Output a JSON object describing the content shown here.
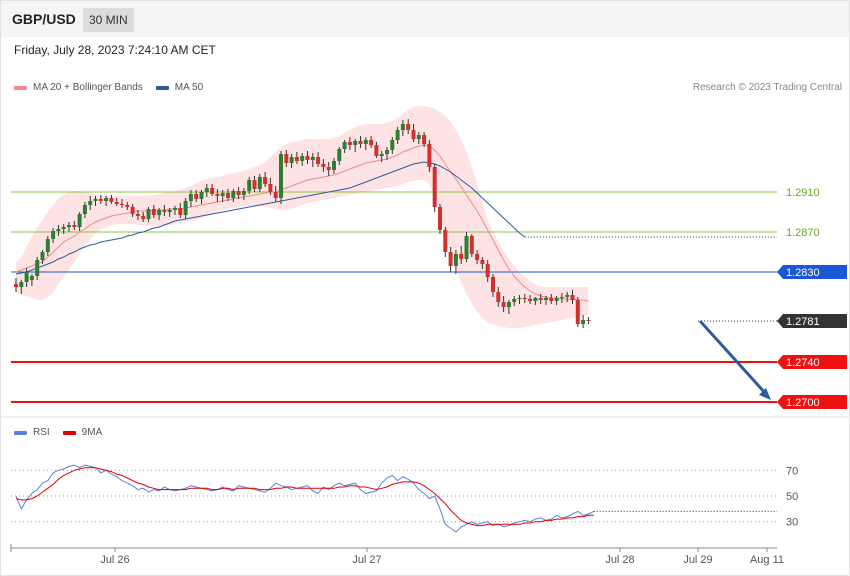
{
  "header": {
    "symbol": "GBP/USD",
    "timeframe": "30 MIN",
    "datetime": "Friday, July 28, 2023 7:24:10 AM CET"
  },
  "legend": {
    "ma20_label": "MA 20 + Bollinger Bands",
    "ma20_color": "#f08a8a",
    "ma50_label": "MA 50",
    "ma50_color": "#2e5c9a",
    "rsi_label": "RSI",
    "rsi_color": "#5b7fdc",
    "ma9_label": "9MA",
    "ma9_color": "#e00000"
  },
  "credit": "Research © 2023 Trading Central",
  "chart_data": {
    "type": "candlestick",
    "y_range": [
      1.2685,
      1.3005
    ],
    "x_labels": [
      "Jul 26",
      "Jul 27",
      "Jul 28",
      "Jul 29",
      "Aug 11"
    ],
    "levels": [
      {
        "value": 1.291,
        "label": "1.2910",
        "kind": "resistance",
        "color": "#8cc641"
      },
      {
        "value": 1.287,
        "label": "1.2870",
        "kind": "resistance",
        "color": "#8cc641"
      },
      {
        "value": 1.283,
        "label": "1.2830",
        "kind": "pivot",
        "color": "#1a56d6"
      },
      {
        "value": 1.2781,
        "label": "1.2781",
        "kind": "last",
        "color": "#333333"
      },
      {
        "value": 1.274,
        "label": "1.2740",
        "kind": "support",
        "color": "#ee1111"
      },
      {
        "value": 1.27,
        "label": "1.2700",
        "kind": "support",
        "color": "#ee1111"
      }
    ],
    "forecast_arrow": {
      "from": 1.2781,
      "to": 1.2702
    },
    "candles_ohlc": [
      [
        1.2818,
        1.2824,
        1.281,
        1.2815
      ],
      [
        1.2815,
        1.2822,
        1.2808,
        1.282
      ],
      [
        1.282,
        1.2834,
        1.2815,
        1.283
      ],
      [
        1.2822,
        1.2828,
        1.2816,
        1.2826
      ],
      [
        1.2826,
        1.2845,
        1.2822,
        1.2842
      ],
      [
        1.2842,
        1.2852,
        1.2838,
        1.285
      ],
      [
        1.285,
        1.2866,
        1.2846,
        1.2863
      ],
      [
        1.2863,
        1.2874,
        1.2859,
        1.2871
      ],
      [
        1.2871,
        1.2877,
        1.2866,
        1.2873
      ],
      [
        1.2873,
        1.2878,
        1.2868,
        1.2875
      ],
      [
        1.2875,
        1.288,
        1.287,
        1.2877
      ],
      [
        1.2877,
        1.2881,
        1.2872,
        1.2875
      ],
      [
        1.2875,
        1.289,
        1.2871,
        1.2888
      ],
      [
        1.2888,
        1.29,
        1.2884,
        1.2897
      ],
      [
        1.2897,
        1.2906,
        1.2892,
        1.2901
      ],
      [
        1.2901,
        1.2906,
        1.2896,
        1.2903
      ],
      [
        1.2903,
        1.2907,
        1.2898,
        1.2901
      ],
      [
        1.2901,
        1.2906,
        1.2896,
        1.2904
      ],
      [
        1.2904,
        1.2907,
        1.2898,
        1.29
      ],
      [
        1.29,
        1.2904,
        1.2896,
        1.2898
      ],
      [
        1.2898,
        1.2903,
        1.2894,
        1.2897
      ],
      [
        1.2897,
        1.29,
        1.2892,
        1.2895
      ],
      [
        1.2895,
        1.2898,
        1.2885,
        1.2888
      ],
      [
        1.2888,
        1.2892,
        1.2882,
        1.2886
      ],
      [
        1.2886,
        1.289,
        1.288,
        1.2883
      ],
      [
        1.2883,
        1.2895,
        1.288,
        1.2893
      ],
      [
        1.2893,
        1.2897,
        1.2884,
        1.2887
      ],
      [
        1.2887,
        1.2894,
        1.2882,
        1.2892
      ],
      [
        1.2892,
        1.2897,
        1.2886,
        1.289
      ],
      [
        1.289,
        1.2894,
        1.2885,
        1.2892
      ],
      [
        1.2892,
        1.2896,
        1.2887,
        1.2894
      ],
      [
        1.2894,
        1.2899,
        1.2884,
        1.2887
      ],
      [
        1.2887,
        1.2904,
        1.2883,
        1.2901
      ],
      [
        1.2901,
        1.2912,
        1.2895,
        1.2908
      ],
      [
        1.2908,
        1.2912,
        1.29,
        1.2903
      ],
      [
        1.2903,
        1.2912,
        1.2898,
        1.291
      ],
      [
        1.291,
        1.2918,
        1.2905,
        1.2914
      ],
      [
        1.2914,
        1.2918,
        1.2906,
        1.2908
      ],
      [
        1.2908,
        1.2913,
        1.29,
        1.2906
      ],
      [
        1.2906,
        1.2912,
        1.29,
        1.2909
      ],
      [
        1.2909,
        1.2913,
        1.2901,
        1.2904
      ],
      [
        1.2904,
        1.2913,
        1.29,
        1.2911
      ],
      [
        1.2911,
        1.2915,
        1.2903,
        1.2907
      ],
      [
        1.2907,
        1.2914,
        1.2902,
        1.2911
      ],
      [
        1.2911,
        1.2925,
        1.2908,
        1.2922
      ],
      [
        1.2922,
        1.2926,
        1.291,
        1.2913
      ],
      [
        1.2913,
        1.2928,
        1.291,
        1.2925
      ],
      [
        1.2925,
        1.293,
        1.2915,
        1.2918
      ],
      [
        1.2918,
        1.2924,
        1.2907,
        1.291
      ],
      [
        1.291,
        1.2916,
        1.29,
        1.2904
      ],
      [
        1.2904,
        1.2951,
        1.2898,
        1.2948
      ],
      [
        1.2948,
        1.2952,
        1.2935,
        1.2939
      ],
      [
        1.2939,
        1.2948,
        1.2934,
        1.2945
      ],
      [
        1.2945,
        1.295,
        1.2938,
        1.2941
      ],
      [
        1.2941,
        1.2949,
        1.2936,
        1.2946
      ],
      [
        1.2946,
        1.2951,
        1.2938,
        1.2942
      ],
      [
        1.2942,
        1.2949,
        1.2935,
        1.2945
      ],
      [
        1.2945,
        1.295,
        1.2935,
        1.2938
      ],
      [
        1.2938,
        1.2943,
        1.293,
        1.2935
      ],
      [
        1.2935,
        1.294,
        1.2926,
        1.2932
      ],
      [
        1.2932,
        1.2944,
        1.2928,
        1.2941
      ],
      [
        1.2941,
        1.2955,
        1.2937,
        1.2953
      ],
      [
        1.2953,
        1.2962,
        1.2949,
        1.296
      ],
      [
        1.296,
        1.2965,
        1.2952,
        1.2957
      ],
      [
        1.2957,
        1.2963,
        1.295,
        1.2961
      ],
      [
        1.2961,
        1.2966,
        1.2954,
        1.2958
      ],
      [
        1.2958,
        1.2965,
        1.2952,
        1.2962
      ],
      [
        1.2962,
        1.2966,
        1.2954,
        1.2957
      ],
      [
        1.2957,
        1.296,
        1.2944,
        1.2946
      ],
      [
        1.2946,
        1.2951,
        1.294,
        1.2948
      ],
      [
        1.2948,
        1.2955,
        1.2942,
        1.2952
      ],
      [
        1.2952,
        1.2965,
        1.2948,
        1.2962
      ],
      [
        1.2962,
        1.2975,
        1.2958,
        1.2972
      ],
      [
        1.2972,
        1.2982,
        1.2966,
        1.2978
      ],
      [
        1.2978,
        1.2983,
        1.2968,
        1.2972
      ],
      [
        1.2972,
        1.2978,
        1.296,
        1.2963
      ],
      [
        1.2963,
        1.297,
        1.2958,
        1.2967
      ],
      [
        1.2967,
        1.297,
        1.2955,
        1.2958
      ],
      [
        1.2958,
        1.2962,
        1.293,
        1.2935
      ],
      [
        1.2935,
        1.2938,
        1.289,
        1.2895
      ],
      [
        1.2895,
        1.2898,
        1.2868,
        1.2872
      ],
      [
        1.2872,
        1.2875,
        1.2845,
        1.285
      ],
      [
        1.285,
        1.2855,
        1.283,
        1.2836
      ],
      [
        1.2836,
        1.2852,
        1.2828,
        1.2848
      ],
      [
        1.2848,
        1.2856,
        1.2838,
        1.2843
      ],
      [
        1.2843,
        1.287,
        1.284,
        1.2866
      ],
      [
        1.2866,
        1.2868,
        1.2845,
        1.2848
      ],
      [
        1.2848,
        1.2852,
        1.2838,
        1.2842
      ],
      [
        1.2842,
        1.2845,
        1.2833,
        1.2838
      ],
      [
        1.2838,
        1.2842,
        1.282,
        1.2825
      ],
      [
        1.2825,
        1.2828,
        1.2805,
        1.281
      ],
      [
        1.281,
        1.2815,
        1.2795,
        1.28
      ],
      [
        1.28,
        1.2806,
        1.279,
        1.2795
      ],
      [
        1.2795,
        1.2802,
        1.2788,
        1.28
      ],
      [
        1.28,
        1.2806,
        1.2796,
        1.2803
      ],
      [
        1.2803,
        1.2807,
        1.2798,
        1.2804
      ],
      [
        1.2804,
        1.2808,
        1.2799,
        1.2803
      ],
      [
        1.2803,
        1.2807,
        1.2798,
        1.2801
      ],
      [
        1.2801,
        1.2805,
        1.2797,
        1.2804
      ],
      [
        1.2804,
        1.2808,
        1.2798,
        1.2802
      ],
      [
        1.2802,
        1.2806,
        1.2797,
        1.2804
      ],
      [
        1.2804,
        1.2808,
        1.2798,
        1.2801
      ],
      [
        1.2801,
        1.2806,
        1.2797,
        1.2804
      ],
      [
        1.2804,
        1.2809,
        1.2799,
        1.2805
      ],
      [
        1.2805,
        1.281,
        1.28,
        1.2807
      ],
      [
        1.2807,
        1.2812,
        1.2798,
        1.2802
      ],
      [
        1.2802,
        1.2805,
        1.2775,
        1.2778
      ],
      [
        1.2778,
        1.2787,
        1.2774,
        1.2782
      ],
      [
        1.2782,
        1.2785,
        1.2778,
        1.2781
      ]
    ],
    "ma20": [
      1.283,
      1.2832,
      1.2834,
      1.2836,
      1.2838,
      1.284,
      1.2845,
      1.285,
      1.2855,
      1.286,
      1.2863,
      1.2866,
      1.287,
      1.2873,
      1.2877,
      1.288,
      1.2882,
      1.2884,
      1.2886,
      1.2887,
      1.2888,
      1.2889,
      1.289,
      1.2891,
      1.2891,
      1.2891,
      1.2891,
      1.2892,
      1.2892,
      1.2893,
      1.2893,
      1.2893,
      1.2894,
      1.2895,
      1.2896,
      1.2897,
      1.2898,
      1.2899,
      1.29,
      1.2901,
      1.2902,
      1.2903,
      1.2904,
      1.2905,
      1.2906,
      1.2907,
      1.2908,
      1.2909,
      1.291,
      1.291,
      1.2912,
      1.2914,
      1.2916,
      1.2918,
      1.292,
      1.2922,
      1.2923,
      1.2924,
      1.2925,
      1.2926,
      1.2927,
      1.2929,
      1.2931,
      1.2933,
      1.2935,
      1.2937,
      1.2939,
      1.294,
      1.2941,
      1.2942,
      1.2943,
      1.2945,
      1.2947,
      1.295,
      1.2952,
      1.2954,
      1.2956,
      1.2957,
      1.2956,
      1.2952,
      1.2946,
      1.2938,
      1.293,
      1.2923,
      1.2915,
      1.2907,
      1.2899,
      1.2891,
      1.2882,
      1.2872,
      1.2862,
      1.2852,
      1.2842,
      1.2833,
      1.2826,
      1.282,
      1.2815,
      1.2811,
      1.2808,
      1.2806,
      1.2805,
      1.2804,
      1.2804,
      1.2803,
      1.2803,
      1.2803,
      1.2802,
      1.2802,
      1.2801
    ],
    "bb_upper": [
      1.284,
      1.2845,
      1.2855,
      1.2865,
      1.2875,
      1.2882,
      1.289,
      1.2897,
      1.2903,
      1.2907,
      1.291,
      1.2911,
      1.2911,
      1.291,
      1.2909,
      1.2908,
      1.2907,
      1.2906,
      1.2906,
      1.2906,
      1.2906,
      1.2906,
      1.2906,
      1.2906,
      1.2906,
      1.2906,
      1.2907,
      1.2908,
      1.2909,
      1.291,
      1.2911,
      1.2912,
      1.2914,
      1.2916,
      1.2919,
      1.2921,
      1.2923,
      1.2924,
      1.2925,
      1.2926,
      1.2928,
      1.2929,
      1.293,
      1.2931,
      1.2933,
      1.2935,
      1.2937,
      1.294,
      1.2945,
      1.295,
      1.2955,
      1.2958,
      1.296,
      1.2961,
      1.2962,
      1.2963,
      1.2963,
      1.2963,
      1.2963,
      1.2963,
      1.2964,
      1.2966,
      1.2969,
      1.2972,
      1.2975,
      1.2977,
      1.2978,
      1.2978,
      1.2978,
      1.2978,
      1.2979,
      1.2981,
      1.2984,
      1.2988,
      1.2992,
      1.2995,
      1.2996,
      1.2996,
      1.2995,
      1.2993,
      1.299,
      1.2986,
      1.298,
      1.2972,
      1.2962,
      1.295,
      1.2935,
      1.2918,
      1.29,
      1.2882,
      1.287,
      1.286,
      1.2851,
      1.2843,
      1.2836,
      1.283,
      1.2825,
      1.2821,
      1.2818,
      1.2816,
      1.2815,
      1.2815,
      1.2815,
      1.2815,
      1.2815,
      1.2815,
      1.2815,
      1.2815,
      1.2815
    ],
    "bb_lower": [
      1.281,
      1.2808,
      1.2806,
      1.2804,
      1.2802,
      1.2802,
      1.2805,
      1.281,
      1.2818,
      1.2825,
      1.2832,
      1.284,
      1.2848,
      1.2856,
      1.2863,
      1.2868,
      1.2872,
      1.2875,
      1.2877,
      1.2878,
      1.2878,
      1.2878,
      1.2878,
      1.2877,
      1.2877,
      1.2876,
      1.2876,
      1.2876,
      1.2877,
      1.2877,
      1.2878,
      1.2879,
      1.288,
      1.2881,
      1.2882,
      1.2884,
      1.2886,
      1.2888,
      1.289,
      1.2892,
      1.2893,
      1.2894,
      1.2895,
      1.2896,
      1.2896,
      1.2896,
      1.2896,
      1.2895,
      1.2894,
      1.2893,
      1.2892,
      1.2892,
      1.2893,
      1.2895,
      1.2897,
      1.2899,
      1.29,
      1.2901,
      1.2902,
      1.2903,
      1.2904,
      1.2905,
      1.2906,
      1.2907,
      1.2908,
      1.2909,
      1.291,
      1.2911,
      1.2912,
      1.2913,
      1.2914,
      1.2915,
      1.2916,
      1.2918,
      1.292,
      1.2921,
      1.2922,
      1.2922,
      1.2918,
      1.2905,
      1.2888,
      1.2868,
      1.285,
      1.2834,
      1.282,
      1.2808,
      1.2798,
      1.279,
      1.2784,
      1.278,
      1.2778,
      1.2776,
      1.2775,
      1.2774,
      1.2774,
      1.2774,
      1.2775,
      1.2776,
      1.2777,
      1.2778,
      1.2779,
      1.278,
      1.2781,
      1.2782,
      1.2783,
      1.2784,
      1.2785,
      1.2786,
      1.2787
    ],
    "ma50": [
      1.2828,
      1.2829,
      1.283,
      1.2832,
      1.2834,
      1.2836,
      1.2838,
      1.284,
      1.2843,
      1.2845,
      1.2848,
      1.285,
      1.2853,
      1.2855,
      1.2857,
      1.2858,
      1.286,
      1.2861,
      1.2862,
      1.2863,
      1.2864,
      1.2866,
      1.2867,
      1.2869,
      1.287,
      1.2872,
      1.2874,
      1.2875,
      1.2877,
      1.2879,
      1.2881,
      1.2882,
      1.2883,
      1.2884,
      1.2885,
      1.2886,
      1.2887,
      1.2888,
      1.2889,
      1.289,
      1.2891,
      1.2892,
      1.2893,
      1.2894,
      1.2895,
      1.2896,
      1.2897,
      1.2898,
      1.2899,
      1.29,
      1.2901,
      1.2902,
      1.2903,
      1.2904,
      1.2905,
      1.2906,
      1.2907,
      1.2908,
      1.2909,
      1.291,
      1.2911,
      1.2912,
      1.2913,
      1.2914,
      1.2916,
      1.2918,
      1.292,
      1.2922,
      1.2924,
      1.2926,
      1.2928,
      1.293,
      1.2932,
      1.2934,
      1.2936,
      1.2938,
      1.2939,
      1.294,
      1.2939,
      1.2938,
      1.2936,
      1.2933,
      1.293,
      1.2926,
      1.2922,
      1.2918,
      1.2914,
      1.2909,
      1.2904,
      1.2899,
      1.2894,
      1.2889,
      1.2884,
      1.2879,
      1.2874,
      1.2869,
      1.2865
    ],
    "rsi": {
      "y_range": [
        15,
        85
      ],
      "levels": [
        70,
        50,
        30
      ],
      "x_labels": [
        "Jul 26",
        "Jul 27",
        "Jul 28",
        "Jul 29",
        "Aug 11"
      ],
      "rsi_values": [
        50,
        40,
        47,
        52,
        55,
        60,
        62,
        68,
        70,
        71,
        73,
        74,
        72,
        74,
        73,
        72,
        68,
        70,
        67,
        65,
        62,
        60,
        58,
        55,
        56,
        53,
        55,
        54,
        57,
        55,
        54,
        55,
        56,
        58,
        57,
        56,
        55,
        54,
        55,
        57,
        55,
        54,
        58,
        57,
        56,
        55,
        54,
        53,
        56,
        60,
        58,
        57,
        55,
        56,
        57,
        58,
        54,
        52,
        57,
        55,
        58,
        60,
        58,
        59,
        60,
        55,
        52,
        53,
        54,
        60,
        64,
        66,
        62,
        65,
        63,
        60,
        55,
        52,
        48,
        50,
        40,
        28,
        25,
        22,
        26,
        28,
        30,
        28,
        29,
        30,
        27,
        28,
        26,
        27,
        29,
        30,
        31,
        30,
        32,
        33,
        31,
        32,
        35,
        33,
        34,
        36,
        38,
        35,
        36,
        38
      ],
      "ma9_values": [
        48,
        47,
        47,
        48,
        50,
        53,
        56,
        59,
        63,
        66,
        68,
        70,
        71,
        72,
        72,
        72,
        71,
        70,
        69,
        67,
        66,
        64,
        62,
        60,
        59,
        57,
        56,
        55,
        55,
        55,
        55,
        55,
        55,
        56,
        56,
        56,
        56,
        55,
        55,
        56,
        56,
        55,
        56,
        56,
        56,
        56,
        55,
        55,
        55,
        56,
        56,
        57,
        57,
        56,
        56,
        56,
        56,
        56,
        56,
        56,
        56,
        57,
        57,
        58,
        58,
        57,
        57,
        56,
        55,
        56,
        57,
        59,
        60,
        61,
        61,
        61,
        60,
        58,
        55,
        52,
        48,
        44,
        39,
        35,
        31,
        29,
        28,
        27,
        27,
        28,
        28,
        28,
        28,
        28,
        28,
        28,
        29,
        29,
        30,
        30,
        31,
        31,
        32,
        32,
        33,
        33,
        34,
        34,
        35,
        35
      ]
    }
  }
}
